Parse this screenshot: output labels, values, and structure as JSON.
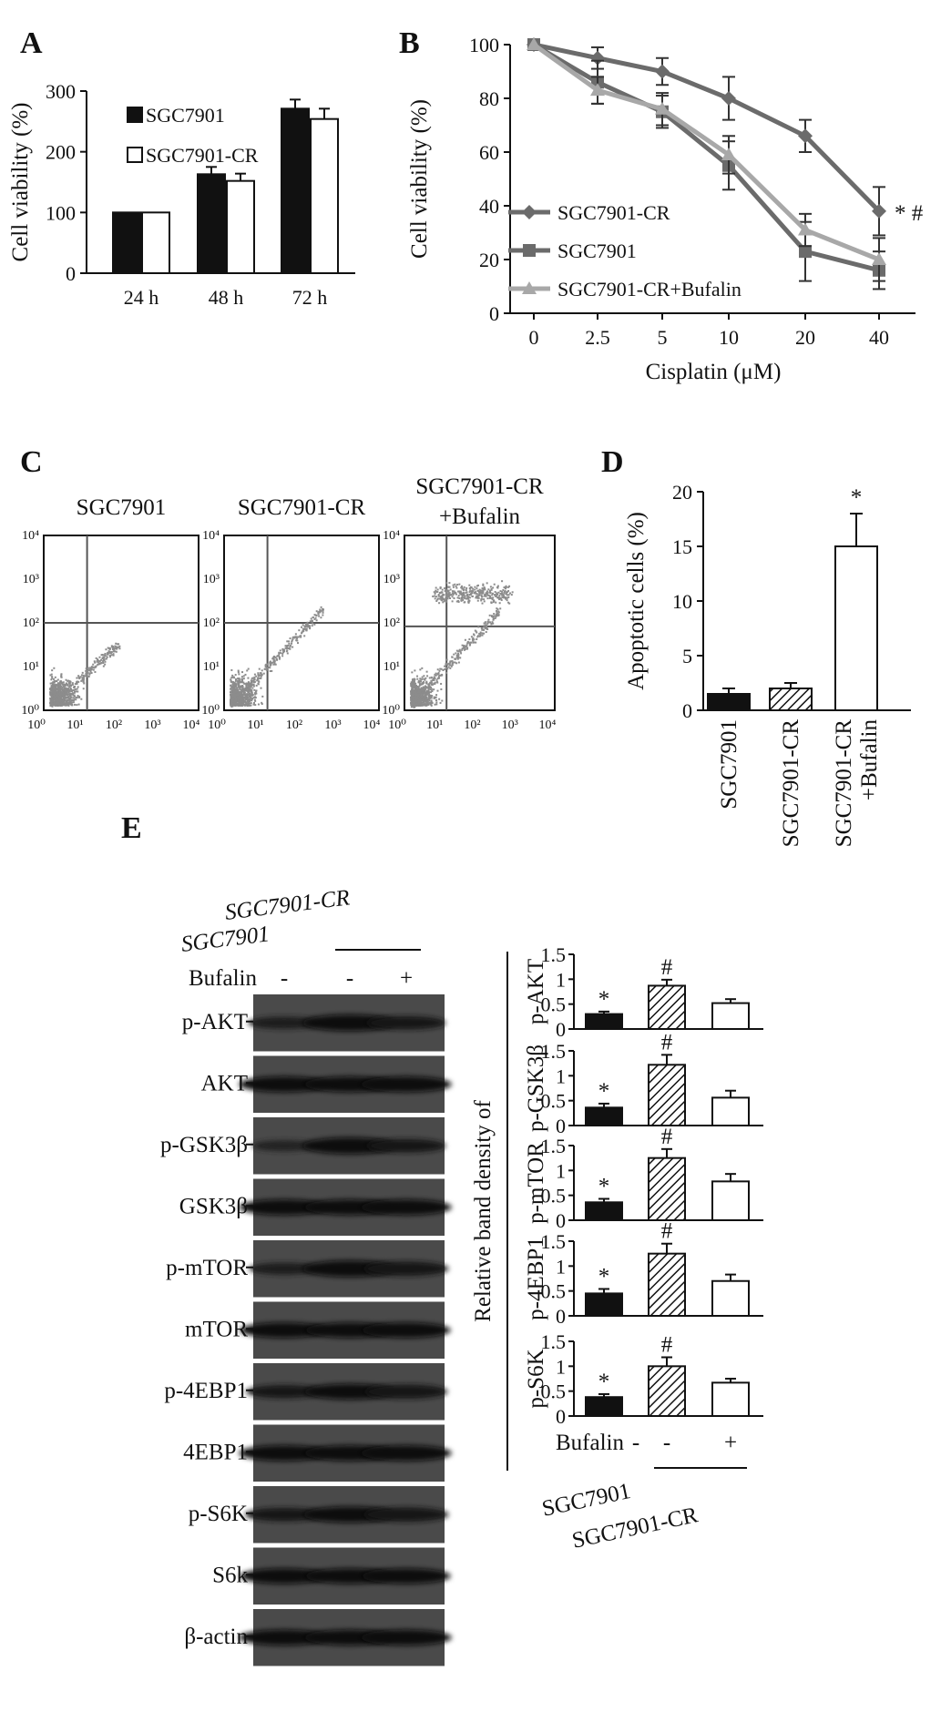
{
  "panels": {
    "A": "A",
    "B": "B",
    "C": "C",
    "D": "D",
    "E": "E"
  },
  "colors": {
    "black": "#111111",
    "dark_gray": "#6b6b6b",
    "light_gray": "#a8a8a8",
    "blot_bg": "#3a3a3a",
    "dots": "#8c8c8c"
  },
  "chart_data": [
    {
      "panel": "A",
      "type": "bar",
      "ylabel": "Cell viability (%)",
      "ylim": [
        0,
        300
      ],
      "yticks": [
        0,
        100,
        200,
        300
      ],
      "categories": [
        "24 h",
        "48 h",
        "72 h"
      ],
      "series": [
        {
          "name": "SGC7901",
          "fill": "#111111",
          "values": [
            100,
            163,
            271
          ],
          "errors": [
            0,
            12,
            15
          ]
        },
        {
          "name": "SGC7901-CR",
          "fill": "#ffffff",
          "values": [
            100,
            152,
            254
          ],
          "errors": [
            0,
            12,
            17
          ]
        }
      ],
      "legend": "top-left"
    },
    {
      "panel": "B",
      "type": "line",
      "xlabel": "Cisplatin (μM)",
      "ylabel": "Cell viability (%)",
      "ylim": [
        0,
        100
      ],
      "yticks": [
        0,
        20,
        40,
        60,
        80,
        100
      ],
      "x": [
        "0",
        "2.5",
        "5",
        "10",
        "20",
        "40"
      ],
      "series": [
        {
          "name": "SGC7901-CR",
          "marker": "diamond",
          "color": "#6b6b6b",
          "values": [
            100,
            95,
            90,
            80,
            66,
            38
          ],
          "errors": [
            0,
            4,
            5,
            8,
            6,
            9
          ]
        },
        {
          "name": "SGC7901",
          "marker": "square",
          "color": "#6b6b6b",
          "values": [
            100,
            86,
            75,
            55,
            23,
            16
          ],
          "errors": [
            0,
            8,
            6,
            9,
            11,
            7
          ]
        },
        {
          "name": "SGC7901-CR+Bufalin",
          "marker": "triangle",
          "color": "#a8a8a8",
          "values": [
            100,
            83,
            76,
            59,
            31,
            20
          ],
          "errors": [
            0,
            5,
            6,
            7,
            6,
            8
          ]
        }
      ],
      "annotation": "* #",
      "legend": "bottom-left"
    },
    {
      "panel": "D",
      "type": "bar",
      "ylabel": "Apoptotic cells (%)",
      "ylim": [
        0,
        20
      ],
      "yticks": [
        0,
        5,
        10,
        15,
        20
      ],
      "categories": [
        "SGC7901",
        "SGC7901-CR",
        "SGC7901-CR +Bufalin"
      ],
      "values": [
        1.5,
        2.0,
        15.0
      ],
      "errors": [
        0.5,
        0.5,
        3.0
      ],
      "fills": [
        "black",
        "hatch",
        "white"
      ],
      "annotations": [
        "",
        "",
        "*"
      ]
    },
    {
      "panel": "E",
      "type": "bar",
      "ylabel": "Relative band density of",
      "ylim": [
        0,
        1.5
      ],
      "yticks": [
        "0",
        "0.5",
        "1",
        "1.5"
      ],
      "fills": [
        "black",
        "hatch",
        "white"
      ],
      "subplots": [
        {
          "name": "p-AKT",
          "values": [
            0.3,
            0.87,
            0.52
          ],
          "errors": [
            0.05,
            0.12,
            0.08
          ],
          "annotations": [
            "*",
            "#",
            ""
          ]
        },
        {
          "name": "p-GSK3β",
          "values": [
            0.36,
            1.22,
            0.56
          ],
          "errors": [
            0.08,
            0.2,
            0.14
          ],
          "annotations": [
            "*",
            "#",
            ""
          ]
        },
        {
          "name": "p-mTOR",
          "values": [
            0.36,
            1.25,
            0.78
          ],
          "errors": [
            0.07,
            0.18,
            0.15
          ],
          "annotations": [
            "*",
            "#",
            ""
          ]
        },
        {
          "name": "p-4EBP1",
          "values": [
            0.45,
            1.25,
            0.7
          ],
          "errors": [
            0.09,
            0.2,
            0.13
          ],
          "annotations": [
            "*",
            "#",
            ""
          ]
        },
        {
          "name": "p-S6K",
          "values": [
            0.38,
            1.0,
            0.67
          ],
          "errors": [
            0.06,
            0.18,
            0.08
          ],
          "annotations": [
            "*",
            "#",
            ""
          ]
        }
      ],
      "bufalin_label": "Bufalin",
      "bufalin_signs": [
        "-",
        "-",
        "+"
      ],
      "group_labels": [
        "SGC7901",
        "SGC7901-CR"
      ]
    }
  ],
  "flow": {
    "titles": [
      "SGC7901",
      "SGC7901-CR",
      "SGC7901-CR +Bufalin"
    ],
    "axis_ticks": [
      "10⁰",
      "10¹",
      "10²",
      "10³",
      "10⁴"
    ]
  },
  "blot": {
    "header_sgc7901": "SGC7901",
    "header_cr": "SGC7901-CR",
    "bufalin_label": "Bufalin",
    "bufalin_signs": [
      "-",
      "-",
      "+"
    ],
    "rows": [
      {
        "label": "p-AKT",
        "bands": [
          0.45,
          1.0,
          0.6
        ]
      },
      {
        "label": "AKT",
        "bands": [
          0.9,
          0.9,
          0.9
        ]
      },
      {
        "label": "p-GSK3β",
        "bands": [
          0.25,
          1.0,
          0.6
        ]
      },
      {
        "label": "GSK3β",
        "bands": [
          0.9,
          0.9,
          0.9
        ]
      },
      {
        "label": "p-mTOR",
        "bands": [
          0.4,
          1.0,
          0.75
        ]
      },
      {
        "label": "mTOR",
        "bands": [
          0.85,
          0.85,
          0.85
        ]
      },
      {
        "label": "p-4EBP1",
        "bands": [
          0.55,
          0.9,
          0.7
        ]
      },
      {
        "label": "4EBP1",
        "bands": [
          0.9,
          0.9,
          0.9
        ]
      },
      {
        "label": "p-S6K",
        "bands": [
          0.6,
          0.95,
          0.75
        ]
      },
      {
        "label": "S6k",
        "bands": [
          0.85,
          0.85,
          0.85
        ]
      },
      {
        "label": "β-actin",
        "bands": [
          0.9,
          0.9,
          0.9
        ]
      }
    ]
  }
}
